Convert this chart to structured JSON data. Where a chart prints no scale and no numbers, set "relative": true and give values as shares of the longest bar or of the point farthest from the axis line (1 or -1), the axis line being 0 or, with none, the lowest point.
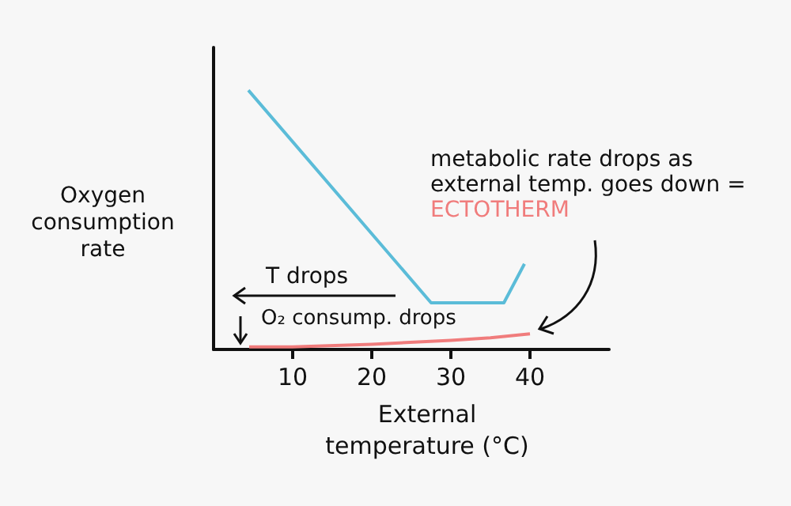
{
  "chart_data": {
    "type": "line",
    "relative": true,
    "xlabel": "External temperature (°C)",
    "ylabel": "Oxygen consumption rate",
    "xlim": [
      0,
      50
    ],
    "xticks": [
      10,
      20,
      30,
      40
    ],
    "marker": "none",
    "series": [
      {
        "color": "#5bbcd8",
        "x": [
          4.4,
          27.5,
          36.7,
          39.3
        ],
        "values": [
          1,
          0.18,
          0.18,
          0.33
        ]
      },
      {
        "color": "#f07c7c",
        "x": [
          4.5,
          10,
          20,
          30,
          35,
          40
        ],
        "values": [
          0.01,
          0.01,
          0.02,
          0.035,
          0.045,
          0.06
        ]
      }
    ],
    "annotations": [
      "T drops",
      "O₂ consump. drops",
      "metabolic rate drops as external temp. goes down =",
      "ECTOTHERM"
    ]
  }
}
